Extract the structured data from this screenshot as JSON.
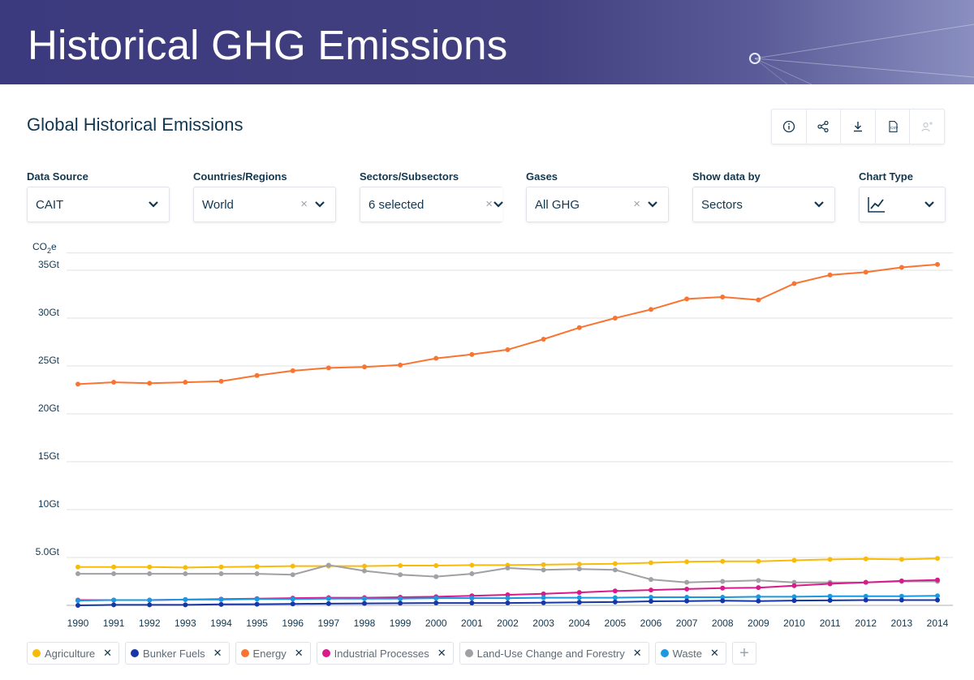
{
  "hero": {
    "title": "Historical GHG Emissions"
  },
  "section": {
    "title": "Global Historical Emissions"
  },
  "toolbar": {
    "icons": [
      "info-icon",
      "share-icon",
      "download-icon",
      "csv-icon",
      "add-to-user-icon"
    ]
  },
  "filters": {
    "data_source": {
      "label": "Data Source",
      "value": "CAIT"
    },
    "countries": {
      "label": "Countries/Regions",
      "value": "World"
    },
    "sectors": {
      "label": "Sectors/Subsectors",
      "value": "6 selected"
    },
    "gases": {
      "label": "Gases",
      "value": "All GHG"
    },
    "show_by": {
      "label": "Show data by",
      "value": "Sectors"
    },
    "chart_type": {
      "label": "Chart Type",
      "icon": "line-chart-icon"
    }
  },
  "legend": [
    {
      "label": "Agriculture",
      "color": "#f9bb0a"
    },
    {
      "label": "Bunker Fuels",
      "color": "#1736a7"
    },
    {
      "label": "Energy",
      "color": "#fa7431"
    },
    {
      "label": "Industrial Processes",
      "color": "#d91b89"
    },
    {
      "label": "Land-Use Change and Forestry",
      "color": "#a0a0a5"
    },
    {
      "label": "Waste",
      "color": "#1a98e0"
    }
  ],
  "chart_data": {
    "type": "line",
    "ylabel": "CO",
    "ylabel_sub": "2",
    "ylabel_suffix": "e",
    "ylim": [
      0,
      36
    ],
    "yticks": [
      5,
      10,
      15,
      20,
      25,
      30,
      35
    ],
    "ytick_labels": [
      "5.0Gt",
      "10Gt",
      "15Gt",
      "20Gt",
      "25Gt",
      "30Gt",
      "35Gt"
    ],
    "x": [
      "1990",
      "1991",
      "1992",
      "1993",
      "1994",
      "1995",
      "1996",
      "1997",
      "1998",
      "1999",
      "2000",
      "2001",
      "2002",
      "2003",
      "2004",
      "2005",
      "2006",
      "2007",
      "2008",
      "2009",
      "2010",
      "2011",
      "2012",
      "2013",
      "2014"
    ],
    "series": [
      {
        "name": "Energy",
        "color": "#fa7431",
        "values": [
          23.1,
          23.3,
          23.2,
          23.3,
          23.4,
          24.0,
          24.5,
          24.8,
          24.9,
          25.1,
          25.8,
          26.2,
          26.7,
          27.8,
          29.0,
          30.0,
          30.9,
          32.0,
          32.2,
          31.9,
          33.6,
          34.5,
          34.8,
          35.3,
          35.6
        ]
      },
      {
        "name": "Agriculture",
        "color": "#f9bb0a",
        "values": [
          4.0,
          4.0,
          4.0,
          3.95,
          4.0,
          4.05,
          4.1,
          4.1,
          4.1,
          4.15,
          4.15,
          4.2,
          4.2,
          4.25,
          4.3,
          4.35,
          4.45,
          4.55,
          4.6,
          4.6,
          4.7,
          4.8,
          4.85,
          4.8,
          4.9
        ]
      },
      {
        "name": "Land-Use Change and Forestry",
        "color": "#a0a0a5",
        "values": [
          3.3,
          3.3,
          3.3,
          3.3,
          3.3,
          3.3,
          3.2,
          4.2,
          3.6,
          3.2,
          3.0,
          3.3,
          3.9,
          3.7,
          3.8,
          3.7,
          2.7,
          2.4,
          2.5,
          2.6,
          2.4,
          2.4,
          2.4,
          2.5,
          2.5
        ]
      },
      {
        "name": "Industrial Processes",
        "color": "#d91b89",
        "values": [
          0.55,
          0.55,
          0.55,
          0.6,
          0.65,
          0.7,
          0.75,
          0.8,
          0.8,
          0.85,
          0.9,
          1.0,
          1.1,
          1.2,
          1.35,
          1.5,
          1.6,
          1.7,
          1.8,
          1.85,
          2.05,
          2.25,
          2.4,
          2.55,
          2.65
        ]
      },
      {
        "name": "Waste",
        "color": "#1a98e0",
        "values": [
          0.5,
          0.55,
          0.55,
          0.6,
          0.6,
          0.65,
          0.65,
          0.7,
          0.7,
          0.7,
          0.75,
          0.75,
          0.75,
          0.8,
          0.8,
          0.8,
          0.85,
          0.85,
          0.85,
          0.9,
          0.9,
          0.95,
          0.95,
          0.95,
          1.0
        ]
      },
      {
        "name": "Bunker Fuels",
        "color": "#1736a7",
        "values": [
          0.0,
          0.05,
          0.05,
          0.05,
          0.1,
          0.12,
          0.15,
          0.18,
          0.2,
          0.22,
          0.25,
          0.25,
          0.25,
          0.27,
          0.32,
          0.35,
          0.42,
          0.45,
          0.48,
          0.45,
          0.5,
          0.52,
          0.55,
          0.55,
          0.55
        ]
      }
    ]
  }
}
